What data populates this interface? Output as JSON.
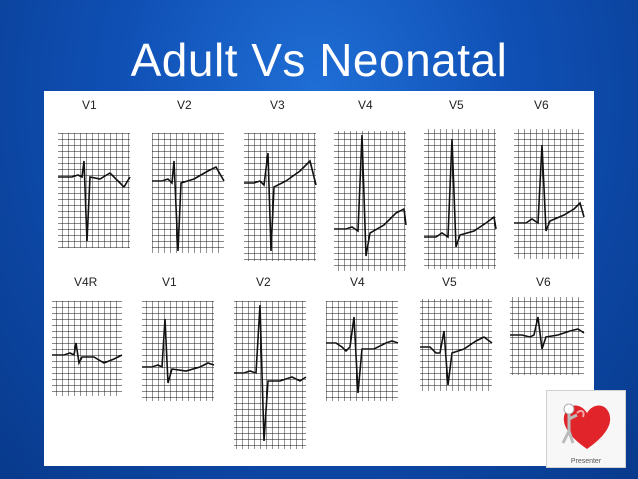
{
  "slide": {
    "title": "Adult Vs Neonatal"
  },
  "ecg": {
    "adult_leads": [
      "V1",
      "V2",
      "V3",
      "V4",
      "V5",
      "V6"
    ],
    "neonatal_leads": [
      "V4R",
      "V1",
      "V2",
      "V4",
      "V5",
      "V6"
    ]
  },
  "logo": {
    "text": "Presenter",
    "icon": "heart-figure-icon"
  },
  "colors": {
    "background": "#0f4fb4",
    "title": "#ffffff",
    "grid": "#111111",
    "logo_heart": "#e0242a"
  }
}
